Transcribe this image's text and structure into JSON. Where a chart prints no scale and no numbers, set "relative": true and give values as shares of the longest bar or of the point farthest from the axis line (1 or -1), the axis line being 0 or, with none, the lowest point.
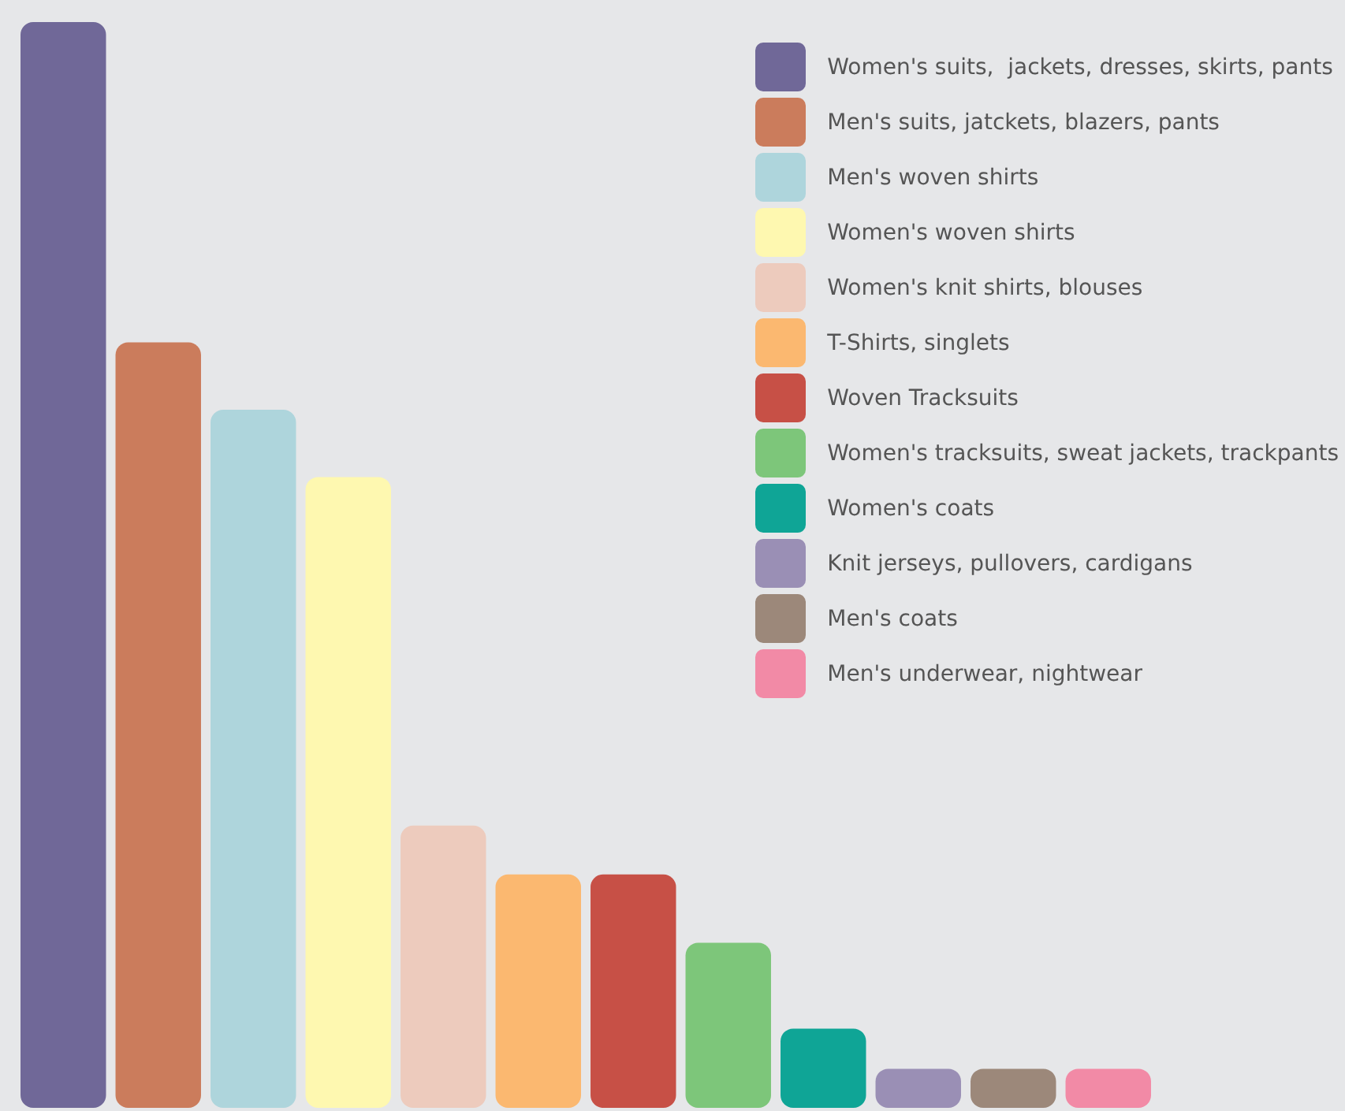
{
  "chart_data": {
    "type": "bar",
    "relative": true,
    "stacked": true,
    "legend": "top right",
    "tick_labels": false,
    "categories": [
      null,
      null,
      null,
      null,
      null,
      null,
      null,
      null,
      null,
      null,
      null,
      null
    ],
    "series": [
      {
        "name": "Women's suits,  jackets, dresses, skirts, pants",
        "color": "#706898",
        "values": [
          1,
          null,
          null,
          null,
          null,
          null,
          null,
          null,
          null,
          null,
          null,
          null
        ]
      },
      {
        "name": "Men's suits, jatckets, blazers, pants",
        "color": "#cb7c5c",
        "values": [
          null,
          0.705,
          null,
          null,
          null,
          null,
          null,
          null,
          null,
          null,
          null,
          null
        ]
      },
      {
        "name": "Men's woven shirts",
        "color": "#aed5dc",
        "values": [
          null,
          null,
          0.643,
          null,
          null,
          null,
          null,
          null,
          null,
          null,
          null,
          null
        ]
      },
      {
        "name": "Women's woven shirts",
        "color": "#fef8b0",
        "values": [
          null,
          null,
          null,
          0.581,
          null,
          null,
          null,
          null,
          null,
          null,
          null,
          null
        ]
      },
      {
        "name": "Women's knit shirts, blouses",
        "color": "#edcbbd",
        "values": [
          null,
          null,
          null,
          null,
          0.26,
          null,
          null,
          null,
          null,
          null,
          null,
          null
        ]
      },
      {
        "name": "T-Shirts, singlets",
        "color": "#fbb870",
        "values": [
          null,
          null,
          null,
          null,
          null,
          0.215,
          null,
          null,
          null,
          null,
          null,
          null
        ]
      },
      {
        "name": "Woven Tracksuits",
        "color": "#c75046",
        "values": [
          null,
          null,
          null,
          null,
          null,
          null,
          0.215,
          null,
          null,
          null,
          null,
          null
        ]
      },
      {
        "name": "Women's tracksuits, sweat jackets, trackpants",
        "color": "#7dc67a",
        "values": [
          null,
          null,
          null,
          null,
          null,
          null,
          null,
          0.152,
          null,
          null,
          null,
          null
        ]
      },
      {
        "name": "Women's coats",
        "color": "#0fa596",
        "values": [
          null,
          null,
          null,
          null,
          null,
          null,
          null,
          null,
          0.073,
          null,
          null,
          null
        ]
      },
      {
        "name": "Knit jerseys, pullovers, cardigans",
        "color": "#9a8fb5",
        "values": [
          null,
          null,
          null,
          null,
          null,
          null,
          null,
          null,
          null,
          0.036,
          null,
          null
        ]
      },
      {
        "name": "Men's coats",
        "color": "#9c887a",
        "values": [
          null,
          null,
          null,
          null,
          null,
          null,
          null,
          null,
          null,
          null,
          0.036,
          null
        ]
      },
      {
        "name": "Men's underwear, nightwear",
        "color": "#f28aa6",
        "values": [
          null,
          null,
          null,
          null,
          null,
          null,
          null,
          null,
          null,
          null,
          null,
          0.036
        ]
      }
    ]
  }
}
